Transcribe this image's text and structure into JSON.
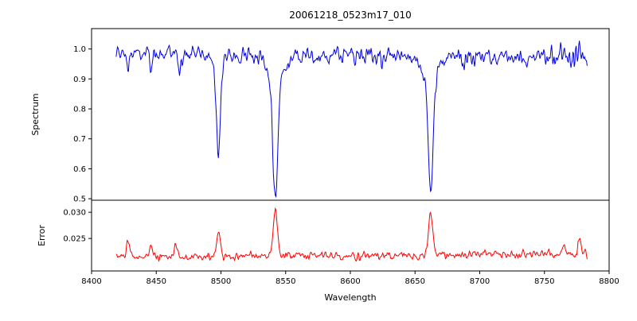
{
  "chart_data": {
    "type": "line",
    "title": "20061218_0523m17_010",
    "xlabel": "Wavelength",
    "xlim": [
      8400,
      8800
    ],
    "xticks": [
      8400,
      8450,
      8500,
      8550,
      8600,
      8650,
      8700,
      8750,
      8800
    ],
    "xtick_labels": [
      "8400",
      "8450",
      "8500",
      "8550",
      "8600",
      "8650",
      "8700",
      "8750",
      "8800"
    ],
    "grid": false,
    "legend": "none",
    "panels": [
      {
        "name": "spectrum",
        "ylabel": "Spectrum",
        "ylim": [
          0.495,
          1.068
        ],
        "yticks": [
          0.5,
          0.6,
          0.7,
          0.8,
          0.9,
          1.0
        ],
        "ytick_labels": [
          "0.5",
          "0.6",
          "0.7",
          "0.8",
          "0.9",
          "1.0"
        ],
        "line_color": "#0000dd",
        "x_start": 8419,
        "x_end": 8783,
        "x_step": 0.5,
        "continuum": 0.98,
        "noise_std": 0.013,
        "absorption_lines": [
          {
            "center": 8428.0,
            "depth": 0.04,
            "sigma": 1.0,
            "wing_depth": 0,
            "wing_sigma": 1
          },
          {
            "center": 8446.0,
            "depth": 0.07,
            "sigma": 1.0,
            "wing_depth": 0,
            "wing_sigma": 1
          },
          {
            "center": 8468.0,
            "depth": 0.05,
            "sigma": 0.9,
            "wing_depth": 0,
            "wing_sigma": 1
          },
          {
            "center": 8498.0,
            "depth": 0.28,
            "sigma": 1.6,
            "wing_depth": 0.03,
            "wing_sigma": 5
          },
          {
            "center": 8514.0,
            "depth": 0.035,
            "sigma": 0.9,
            "wing_depth": 0,
            "wing_sigma": 1
          },
          {
            "center": 8542.1,
            "depth": 0.4,
            "sigma": 1.9,
            "wing_depth": 0.08,
            "wing_sigma": 7
          },
          {
            "center": 8583.0,
            "depth": 0.03,
            "sigma": 0.9,
            "wing_depth": 0,
            "wing_sigma": 1
          },
          {
            "center": 8611.0,
            "depth": 0.028,
            "sigma": 0.9,
            "wing_depth": 0,
            "wing_sigma": 1
          },
          {
            "center": 8662.1,
            "depth": 0.38,
            "sigma": 1.8,
            "wing_depth": 0.08,
            "wing_sigma": 6
          },
          {
            "center": 8688.0,
            "depth": 0.04,
            "sigma": 0.9,
            "wing_depth": 0,
            "wing_sigma": 1
          },
          {
            "center": 8713.0,
            "depth": 0.028,
            "sigma": 0.9,
            "wing_depth": 0,
            "wing_sigma": 1
          },
          {
            "center": 8736.0,
            "depth": 0.028,
            "sigma": 0.9,
            "wing_depth": 0,
            "wing_sigma": 1
          },
          {
            "center": 8757.0,
            "depth": 0.032,
            "sigma": 0.9,
            "wing_depth": 0,
            "wing_sigma": 1
          },
          {
            "center": 8773.0,
            "depth": 0.03,
            "sigma": 0.9,
            "wing_depth": 0,
            "wing_sigma": 1
          }
        ]
      },
      {
        "name": "error",
        "ylabel": "Error",
        "ylim": [
          0.0188,
          0.0323
        ],
        "yticks": [
          0.025,
          0.03
        ],
        "ytick_labels": [
          "0.025",
          "0.030"
        ],
        "line_color": "#ff0000",
        "x_start": 8419,
        "x_end": 8783,
        "x_step": 0.5,
        "baseline": 0.0215,
        "noise_std": 0.00035,
        "peaks": [
          {
            "center": 8428,
            "height": 0.003,
            "sigma": 1.2
          },
          {
            "center": 8446,
            "height": 0.002,
            "sigma": 1.2
          },
          {
            "center": 8465,
            "height": 0.0024,
            "sigma": 1.2
          },
          {
            "center": 8498,
            "height": 0.0045,
            "sigma": 1.4
          },
          {
            "center": 8542,
            "height": 0.0088,
            "sigma": 1.6
          },
          {
            "center": 8662,
            "height": 0.008,
            "sigma": 1.6
          },
          {
            "center": 8765,
            "height": 0.002,
            "sigma": 1.2
          },
          {
            "center": 8777,
            "height": 0.0028,
            "sigma": 1.2
          }
        ]
      }
    ]
  }
}
